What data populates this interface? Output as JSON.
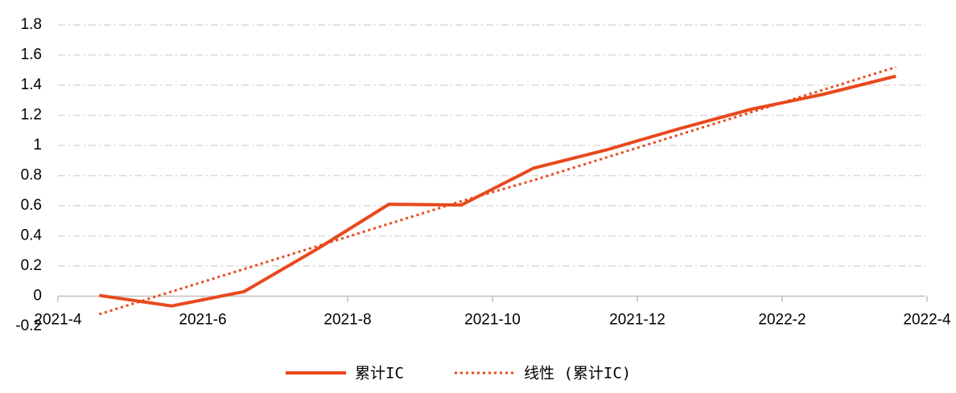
{
  "chart_data": {
    "type": "line",
    "x": [
      "2021-4",
      "2021-5",
      "2021-6",
      "2021-7",
      "2021-8",
      "2021-9",
      "2021-10",
      "2021-11",
      "2021-12",
      "2022-1",
      "2022-2",
      "2022-3"
    ],
    "xticks": [
      "2021-4",
      "2021-6",
      "2021-8",
      "2021-10",
      "2021-12",
      "2022-2",
      "2022-4"
    ],
    "series": [
      {
        "name": "累计IC",
        "color": "#e8491d",
        "style": "solid",
        "values": [
          0.005,
          -0.065,
          0.03,
          0.31,
          0.61,
          0.605,
          0.85,
          0.97,
          1.11,
          1.24,
          1.34,
          1.46
        ]
      },
      {
        "name": "线性 (累计IC)",
        "color": "#e8491d",
        "style": "dotted",
        "values": [
          -0.12,
          0.03,
          0.18,
          0.33,
          0.48,
          0.63,
          0.77,
          0.92,
          1.07,
          1.22,
          1.37,
          1.52
        ]
      }
    ],
    "ylim": [
      -0.2,
      1.8
    ],
    "yticks": [
      -0.2,
      0,
      0.2,
      0.4,
      0.6,
      0.8,
      1,
      1.2,
      1.4,
      1.6,
      1.8
    ],
    "grid": true
  }
}
